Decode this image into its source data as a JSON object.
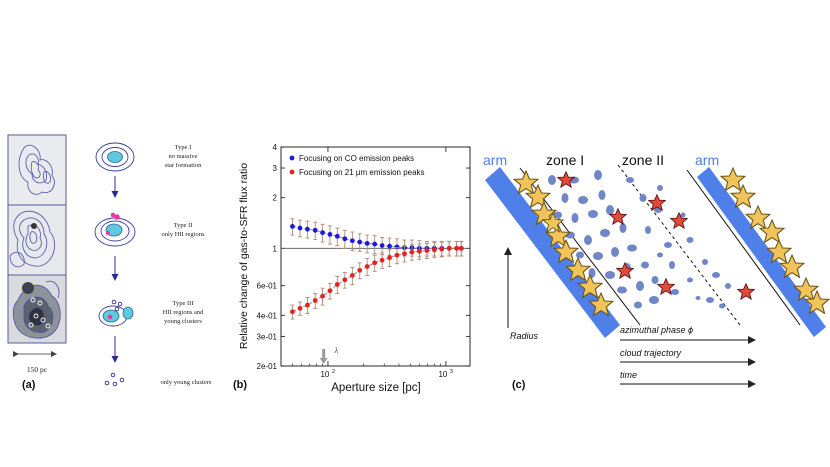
{
  "panel_a": {
    "label": "(a)",
    "scale": "150 pc",
    "types": [
      {
        "name": "Type I",
        "desc": [
          "no massive",
          "star formation"
        ]
      },
      {
        "name": "Type II",
        "desc": [
          "only HII regions"
        ]
      },
      {
        "name": "Type III",
        "desc": [
          "HII regions and",
          "young clusters"
        ]
      },
      {
        "name": "",
        "desc": [
          "only young clusters"
        ]
      }
    ]
  },
  "panel_b": {
    "label": "(b)",
    "chart_data": {
      "type": "line",
      "xlabel": "Aperture size [pc]",
      "ylabel": "Relative change of gas-to-SFR flux ratio",
      "xscale": "log",
      "yscale": "log",
      "xlim": [
        40,
        1600
      ],
      "ylim": [
        0.2,
        4
      ],
      "reference_y": 1,
      "yticks": [
        {
          "v": 4,
          "t": "4"
        },
        {
          "v": 3,
          "t": "3"
        },
        {
          "v": 2,
          "t": "2"
        },
        {
          "v": 1,
          "t": "1"
        },
        {
          "v": 0.6,
          "t": "6e-01"
        },
        {
          "v": 0.4,
          "t": "4e-01"
        },
        {
          "v": 0.3,
          "t": "3e-01"
        },
        {
          "v": 0.2,
          "t": "2e-01"
        }
      ],
      "xticks": [
        {
          "v": 100,
          "t": "10",
          "sup": "2"
        },
        {
          "v": 1000,
          "t": "10",
          "sup": "3"
        }
      ],
      "lambda_marker": {
        "x": 92,
        "label": "λ"
      },
      "series": [
        {
          "name": "Focusing on CO emission peaks",
          "color": "#1a1adb",
          "x": [
            50,
            58,
            67,
            78,
            90,
            104,
            120,
            139,
            161,
            186,
            215,
            249,
            288,
            333,
            385,
            445,
            515,
            596,
            690,
            798,
            922,
            1067,
            1233,
            1350
          ],
          "y": [
            1.35,
            1.32,
            1.3,
            1.28,
            1.24,
            1.21,
            1.18,
            1.14,
            1.11,
            1.09,
            1.07,
            1.06,
            1.04,
            1.03,
            1.02,
            1.01,
            1.01,
            1.0,
            1.0,
            1.0,
            1.0,
            1.0,
            1.0,
            1.0
          ],
          "err": [
            0.15,
            0.15,
            0.15,
            0.15,
            0.15,
            0.15,
            0.14,
            0.14,
            0.14,
            0.13,
            0.13,
            0.13,
            0.12,
            0.12,
            0.12,
            0.11,
            0.11,
            0.11,
            0.1,
            0.1,
            0.1,
            0.1,
            0.1,
            0.1
          ]
        },
        {
          "name": "Focusing on 21 μm emission peaks",
          "color": "#e82020",
          "x": [
            50,
            58,
            67,
            78,
            90,
            104,
            120,
            139,
            161,
            186,
            215,
            249,
            288,
            333,
            385,
            445,
            515,
            596,
            690,
            798,
            922,
            1067,
            1233,
            1350
          ],
          "y": [
            0.42,
            0.44,
            0.46,
            0.49,
            0.52,
            0.56,
            0.61,
            0.65,
            0.69,
            0.74,
            0.78,
            0.82,
            0.85,
            0.88,
            0.91,
            0.93,
            0.95,
            0.96,
            0.97,
            0.98,
            0.99,
            1.0,
            1.0,
            1.0
          ],
          "err": [
            0.04,
            0.04,
            0.05,
            0.05,
            0.06,
            0.06,
            0.07,
            0.07,
            0.08,
            0.08,
            0.09,
            0.09,
            0.09,
            0.1,
            0.1,
            0.1,
            0.1,
            0.1,
            0.1,
            0.1,
            0.1,
            0.1,
            0.1,
            0.1
          ]
        }
      ]
    }
  },
  "panel_c": {
    "label": "(c)",
    "arm_left": "arm",
    "arm_right": "arm",
    "zone1": "zone I",
    "zone2": "zone II",
    "radius": "Radius",
    "arrows": [
      "azimuthal phase ϕ",
      "cloud trajectory",
      "time"
    ]
  }
}
